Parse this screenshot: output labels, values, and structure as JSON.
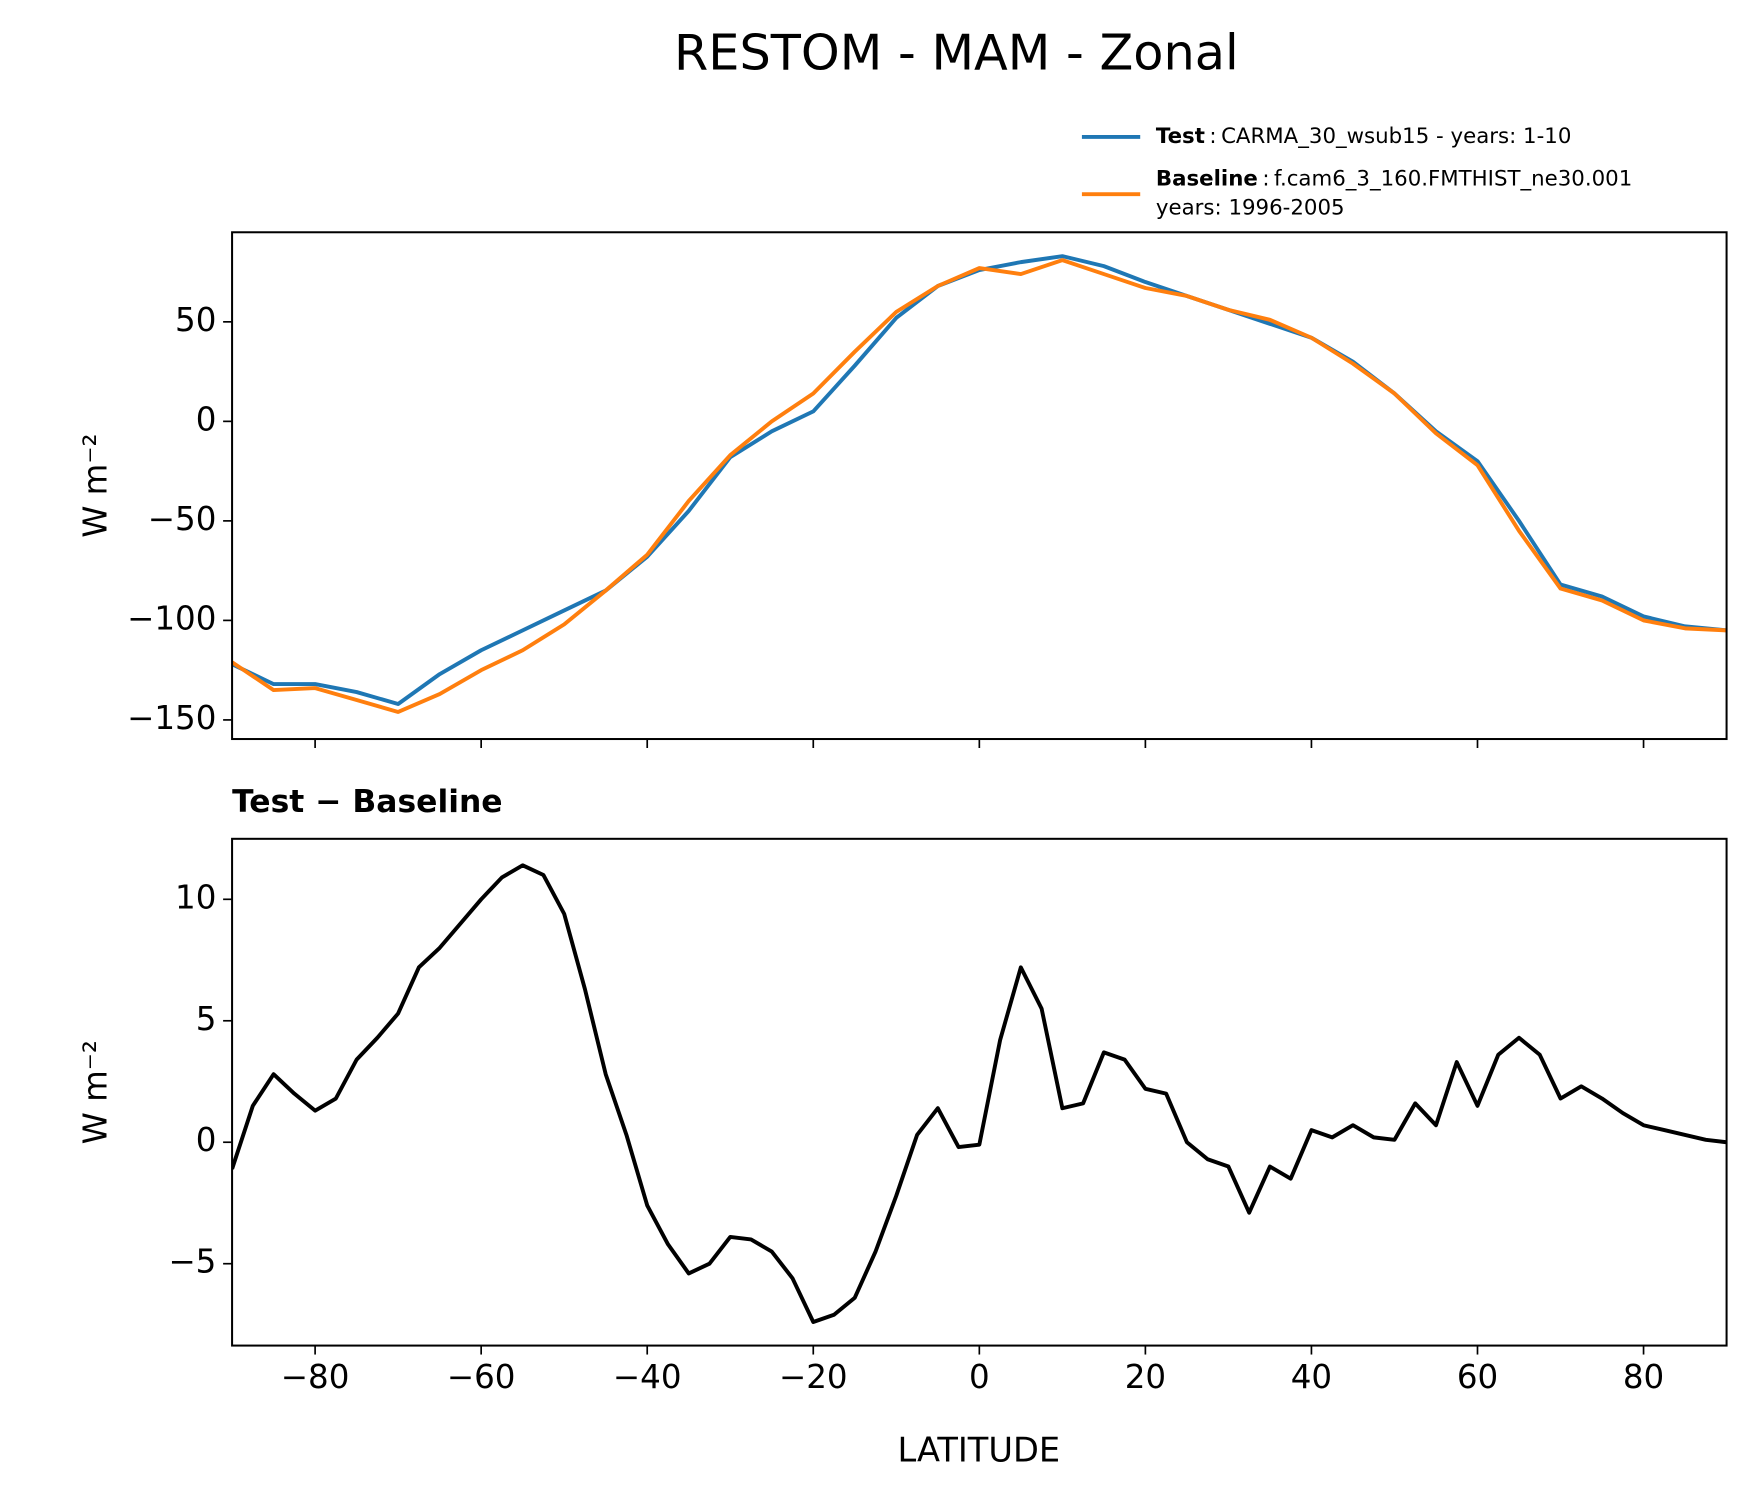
{
  "chart_data": [
    {
      "type": "line",
      "title": "RESTOM - MAM - Zonal",
      "ylabel": "W m⁻²",
      "x": [
        -90,
        -85,
        -80,
        -75,
        -70,
        -65,
        -60,
        -55,
        -50,
        -45,
        -40,
        -35,
        -30,
        -25,
        -20,
        -15,
        -10,
        -5,
        0,
        5,
        10,
        15,
        20,
        25,
        30,
        35,
        40,
        45,
        50,
        55,
        60,
        65,
        70,
        75,
        80,
        85,
        90
      ],
      "series": [
        {
          "name": "Test",
          "legend_label": [
            "CARMA_30_wsub15 - years: 1-10"
          ],
          "color": "#1f77b4",
          "values": [
            -122,
            -132,
            -132,
            -136,
            -142,
            -127,
            -115,
            -105,
            -95,
            -85,
            -68,
            -45,
            -18,
            -5,
            5,
            28,
            52,
            68,
            76,
            80,
            83,
            78,
            70,
            63,
            56,
            49,
            42,
            30,
            14,
            -5,
            -20,
            -50,
            -82,
            -88,
            -98,
            -103,
            -105
          ]
        },
        {
          "name": "Baseline",
          "legend_label": [
            "f.cam6_3_160.FMTHIST_ne30.001",
            "years: 1996-2005"
          ],
          "color": "#ff7f0e",
          "values": [
            -121,
            -135,
            -134,
            -140,
            -146,
            -137,
            -125,
            -115,
            -102,
            -85,
            -67,
            -40,
            -17,
            0,
            14,
            35,
            55,
            68,
            77,
            74,
            81,
            74,
            67,
            63,
            56,
            51,
            42,
            29,
            14,
            -6,
            -22,
            -55,
            -84,
            -90,
            -100,
            -104,
            -105
          ]
        }
      ],
      "xlim": [
        -90,
        90
      ],
      "xticks": [
        -80,
        -60,
        -40,
        -20,
        0,
        20,
        40,
        60,
        80
      ],
      "ylim": [
        -159.6,
        95
      ],
      "yticks": [
        50,
        0,
        {
          "value": -50,
          "label": "−50"
        },
        {
          "value": -100,
          "label": "−100"
        },
        {
          "value": -150,
          "label": "−150"
        }
      ]
    },
    {
      "type": "line",
      "subtitle": "Test − Baseline",
      "ylabel": "W m⁻²",
      "xlabel": "LATITUDE",
      "x": [
        -90,
        -87.5,
        -85,
        -82.5,
        -80,
        -77.5,
        -75,
        -72.5,
        -70,
        -67.5,
        -65,
        -62.5,
        -60,
        -57.5,
        -55,
        -52.5,
        -50,
        -47.5,
        -45,
        -42.5,
        -40,
        -37.5,
        -35,
        -32.5,
        -30,
        -27.5,
        -25,
        -22.5,
        -20,
        -17.5,
        -15,
        -12.5,
        -10,
        -7.5,
        -5,
        -2.5,
        0,
        2.5,
        5,
        7.5,
        10,
        12.5,
        15,
        17.5,
        20,
        22.5,
        25,
        27.5,
        30,
        32.5,
        35,
        37.5,
        40,
        42.5,
        45,
        47.5,
        50,
        52.5,
        55,
        57.5,
        60,
        62.5,
        65,
        67.5,
        70,
        72.5,
        75,
        77.5,
        80,
        82.5,
        85,
        87.5,
        90
      ],
      "series": [
        {
          "color": "#000000",
          "values": [
            -1.1,
            1.5,
            2.8,
            2.0,
            1.3,
            1.8,
            3.4,
            4.3,
            5.3,
            7.2,
            8.0,
            9.0,
            10.0,
            10.9,
            11.4,
            11.0,
            9.4,
            6.3,
            2.8,
            0.3,
            -2.6,
            -4.2,
            -5.4,
            -5.0,
            -3.9,
            -4.0,
            -4.5,
            -5.6,
            -7.4,
            -7.1,
            -6.4,
            -4.5,
            -2.2,
            0.3,
            1.4,
            -0.2,
            -0.1,
            4.2,
            7.2,
            5.5,
            1.4,
            1.6,
            3.7,
            3.4,
            2.2,
            2.0,
            0.0,
            -0.7,
            -1.0,
            -2.9,
            -1.0,
            -1.5,
            0.5,
            0.2,
            0.7,
            0.2,
            0.1,
            1.6,
            0.7,
            3.3,
            1.5,
            3.6,
            4.3,
            3.6,
            1.8,
            2.3,
            1.8,
            1.2,
            0.7,
            0.5,
            0.3,
            0.1,
            0.0
          ]
        }
      ],
      "xlim": [
        -90,
        90
      ],
      "xticks": [
        {
          "value": -80,
          "label": "−80"
        },
        {
          "value": -60,
          "label": "−60"
        },
        {
          "value": -40,
          "label": "−40"
        },
        {
          "value": -20,
          "label": "−20"
        },
        0,
        20,
        40,
        60,
        80
      ],
      "ylim": [
        -8.37,
        12.49
      ],
      "yticks": [
        10,
        5,
        0,
        {
          "value": -5,
          "label": "−5"
        }
      ]
    }
  ]
}
